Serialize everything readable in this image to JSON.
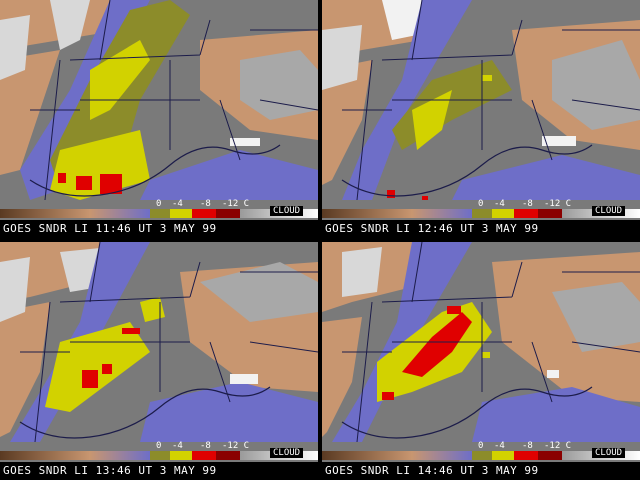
{
  "colors": {
    "background": "#7a7a7a",
    "land_clear": "#c89670",
    "cloud": "#d8d8d8",
    "cloud_bright": "#f2f2f2",
    "moist_band": "#6e6ec8",
    "li_0": "#8c8c2a",
    "li_minus4": "#d2d200",
    "li_minus8": "#e00000",
    "li_minus12": "#8a0000",
    "borders": "#1c1c4a"
  },
  "scale": {
    "ticks": [
      "0",
      "-4",
      "-8",
      "-12 C"
    ],
    "cloud_label": "CLOUD"
  },
  "panels": [
    {
      "caption": "GOES SNDR LI 11:46 UT 3 MAY 99"
    },
    {
      "caption": "GOES SNDR LI 12:46 UT 3 MAY 99"
    },
    {
      "caption": "GOES SNDR LI 13:46 UT 3 MAY 99"
    },
    {
      "caption": "GOES SNDR LI 14:46 UT 3 MAY 99"
    }
  ]
}
